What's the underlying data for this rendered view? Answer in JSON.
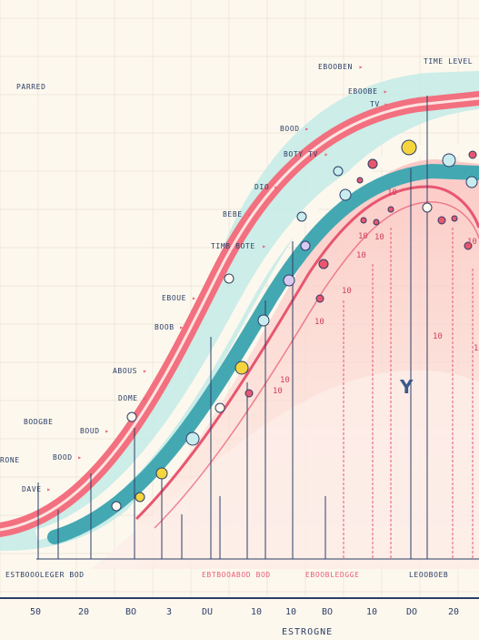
{
  "chart_data": {
    "type": "area",
    "title": "",
    "subtitle": "",
    "xlabel": "ESTROGNE",
    "ylabel": "",
    "center_label": "Y",
    "legend": "none",
    "grid": true,
    "x_ticks": [
      "50",
      "20",
      "BO",
      "3",
      "DU",
      "10",
      "10",
      "BO",
      "10",
      "DO",
      "20"
    ],
    "left_labels": [
      "PARRED",
      "BODGBE",
      "RONE"
    ],
    "annotations": [
      {
        "text": "EBOOBEN"
      },
      {
        "text": "TIME LEVEL"
      },
      {
        "text": "EBOOBE"
      },
      {
        "text": "TV"
      },
      {
        "text": "BOOD"
      },
      {
        "text": "BOTY TV"
      },
      {
        "text": "DIO"
      },
      {
        "text": "BEBE"
      },
      {
        "text": "TIMB BOTE"
      },
      {
        "text": "EBOUE"
      },
      {
        "text": "BOOB"
      },
      {
        "text": "ABOUS"
      },
      {
        "text": "DOME"
      },
      {
        "text": "BOUD"
      },
      {
        "text": "BOOD"
      },
      {
        "text": "DAVE"
      }
    ],
    "value_labels": [
      "10",
      "10",
      "10",
      "10",
      "10",
      "10",
      "10",
      "10",
      "10",
      "10",
      "10"
    ],
    "bottom_labels": [
      "ESTBOOOLEGER BOD",
      "EBTBOOABOD BOD",
      "EBOOBLEDGGE",
      "LEOOBOEB"
    ],
    "colors": {
      "outer_band": "#bfe6e3",
      "pink_band": "#f2707f",
      "teal_band": "#44a8b2",
      "inner_fill": "#fdd9d6",
      "axis": "#2c3e66"
    }
  }
}
